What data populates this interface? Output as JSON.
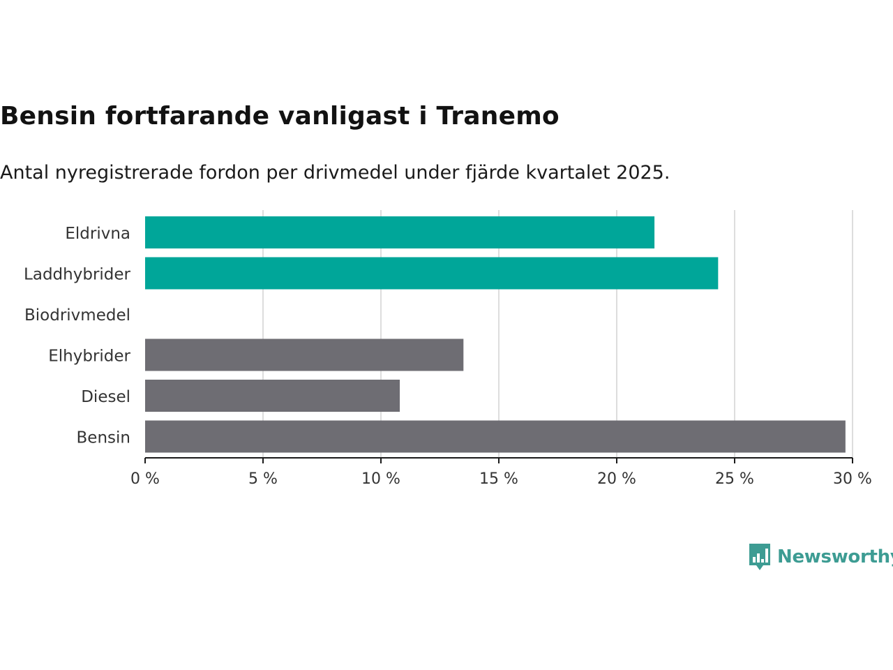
{
  "header": {
    "title": "Bensin fortfarande vanligast i Tranemo",
    "subtitle": "Antal nyregistrerade fordon per drivmedel under fjärde kvartalet 2025."
  },
  "chart_data": {
    "type": "bar",
    "orientation": "horizontal",
    "categories": [
      "Eldrivna",
      "Laddhybrider",
      "Biodrivmedel",
      "Elhybrider",
      "Diesel",
      "Bensin"
    ],
    "values": [
      21.6,
      24.3,
      0,
      13.5,
      10.8,
      29.7
    ],
    "bar_colors": [
      "#00a699",
      "#00a699",
      "#00a699",
      "#6e6d73",
      "#6e6d73",
      "#6e6d73"
    ],
    "xlim": [
      0,
      30
    ],
    "xticks": [
      0,
      5,
      10,
      15,
      20,
      25,
      30
    ],
    "xtick_labels": [
      "0 %",
      "5 %",
      "10 %",
      "15 %",
      "20 %",
      "25 %",
      "30 %"
    ],
    "grid": "vertical",
    "title": "Bensin fortfarande vanligast i Tranemo",
    "xlabel": "",
    "ylabel": ""
  },
  "branding": {
    "name": "Newsworthy",
    "icon": "bar-chart-speech-bubble-icon",
    "color": "#3d9c93"
  },
  "colors": {
    "grid": "#dddddd",
    "axis": "#1a1a1a",
    "label": "#333333"
  }
}
